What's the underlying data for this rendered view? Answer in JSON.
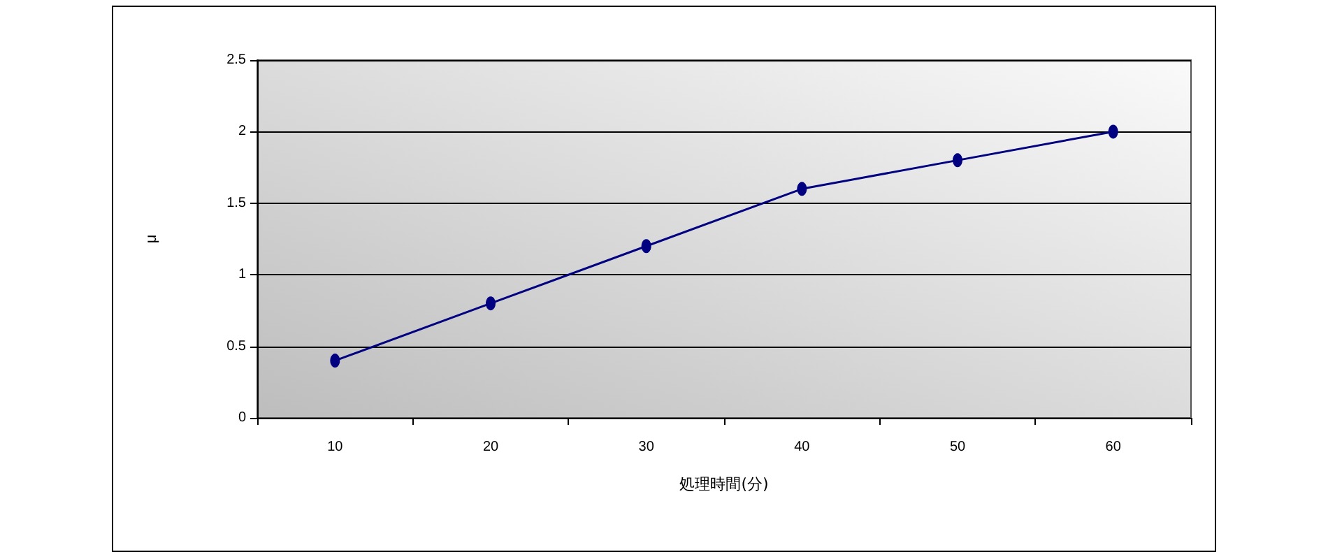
{
  "chart_data": {
    "type": "line",
    "xlabel": "処理時間(分)",
    "ylabel": "μ",
    "categories": [
      "10",
      "20",
      "30",
      "40",
      "50",
      "60"
    ],
    "series": [
      {
        "color": "#000080",
        "values": [
          0.4,
          0.8,
          1.2,
          1.6,
          1.8,
          2.0
        ]
      }
    ],
    "ylim": [
      0,
      2.5
    ],
    "yticks": [
      0,
      0.5,
      1,
      1.5,
      2,
      2.5
    ],
    "grid": "y",
    "marker": "circle",
    "line_style": "solid"
  }
}
